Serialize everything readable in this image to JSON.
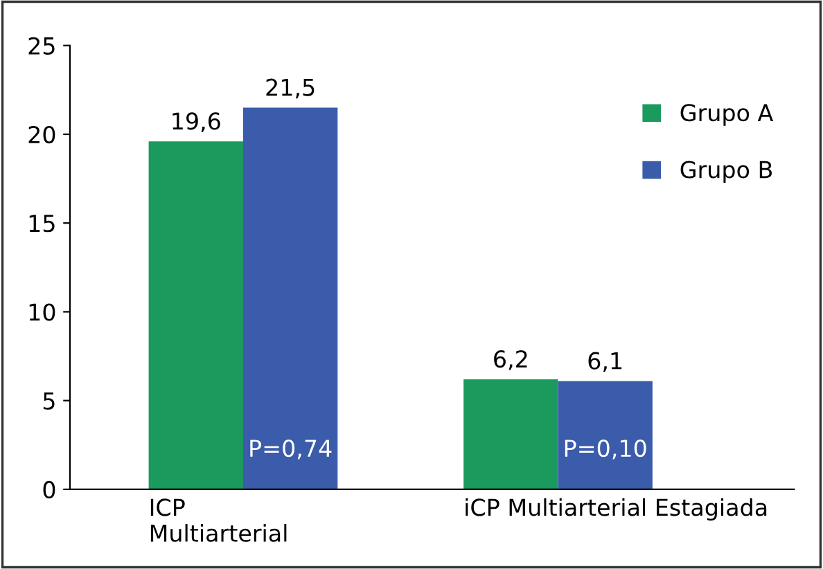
{
  "chart_data": {
    "type": "bar",
    "categories": [
      "ICP\nMultiarterial",
      "iCP Multiarterial Estagiada"
    ],
    "series": [
      {
        "name": "Grupo A",
        "color": "#1a9a5c",
        "values": [
          19.6,
          6.2
        ],
        "value_labels": [
          "19,6",
          "6,2"
        ]
      },
      {
        "name": "Grupo B",
        "color": "#3b5bab",
        "values": [
          21.5,
          6.1
        ],
        "value_labels": [
          "21,5",
          "6,1"
        ]
      }
    ],
    "ylim": [
      0,
      25
    ],
    "yticks": [
      0,
      5,
      10,
      15,
      20,
      25
    ],
    "grid": false,
    "legend": "right",
    "annotations": [
      "P=0,74",
      "P=0,10"
    ]
  }
}
